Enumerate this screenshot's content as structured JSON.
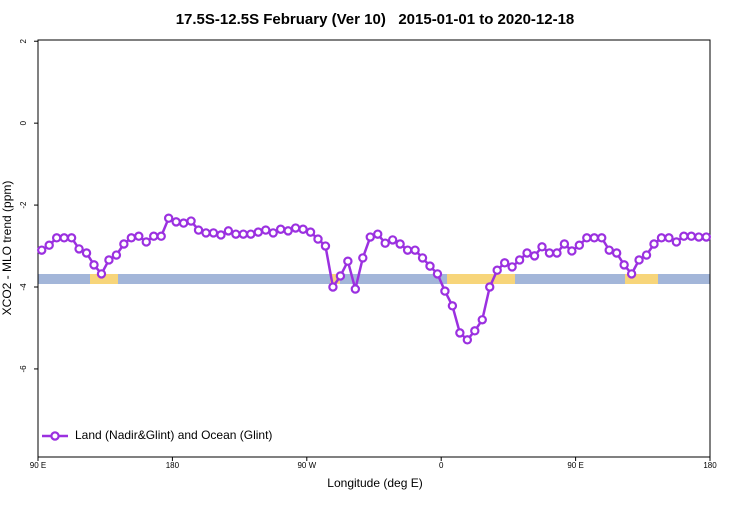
{
  "chart_data": {
    "type": "line",
    "title": "17.5S-12.5S February (Ver 10)   2015-01-01 to 2020-12-18",
    "x_label": "Longitude (deg E)",
    "y_label": "XCO2 - MLO trend (ppm)",
    "xlim": [
      90,
      540
    ],
    "xticks": [
      {
        "value": 90,
        "label": "90 E"
      },
      180,
      {
        "value": 270,
        "label": "90 W"
      },
      {
        "value": 360,
        "label": "0"
      },
      {
        "value": 450,
        "label": "90 E"
      },
      {
        "value": 540,
        "label": "180"
      }
    ],
    "ylim": [
      -8.15,
      2.03
    ],
    "yticks": [
      -6,
      -4,
      -2,
      0,
      2
    ],
    "legend": "bottom-left",
    "x": [
      92.5,
      97.5,
      102.5,
      107.5,
      112.5,
      117.5,
      122.5,
      127.5,
      132.5,
      137.5,
      142.5,
      147.5,
      152.5,
      157.5,
      162.5,
      167.5,
      172.5,
      177.5,
      182.5,
      187.5,
      192.5,
      197.5,
      202.5,
      207.5,
      212.5,
      217.5,
      222.5,
      227.5,
      232.5,
      237.5,
      242.5,
      247.5,
      252.5,
      257.5,
      262.5,
      267.5,
      272.5,
      277.5,
      282.5,
      287.5,
      292.5,
      297.5,
      302.5,
      307.5,
      312.5,
      317.5,
      322.5,
      327.5,
      332.5,
      337.5,
      342.5,
      347.5,
      352.5,
      357.5,
      362.5,
      367.5,
      372.5,
      377.5,
      382.5,
      387.5,
      392.5,
      397.5,
      402.5,
      407.5,
      412.5,
      417.5,
      422.5,
      427.5,
      432.5,
      437.5,
      442.5,
      447.5,
      452.5,
      457.5,
      462.5,
      467.5,
      472.5,
      477.5,
      482.5,
      487.5,
      492.5,
      497.5,
      502.5,
      507.5,
      512.5,
      517.5,
      522.5,
      527.5,
      532.5,
      537.5
    ],
    "series": [
      {
        "name": "Land (Nadir&Glint) and Ocean (Glint)",
        "color": "#9b30e0",
        "values": [
          -3.1,
          -2.98,
          -2.8,
          -2.8,
          -2.8,
          -3.07,
          -3.17,
          -3.46,
          -3.68,
          -3.34,
          -3.22,
          -2.95,
          -2.8,
          -2.76,
          -2.9,
          -2.76,
          -2.76,
          -2.32,
          -2.41,
          -2.44,
          -2.39,
          -2.61,
          -2.68,
          -2.68,
          -2.73,
          -2.63,
          -2.71,
          -2.71,
          -2.71,
          -2.66,
          -2.61,
          -2.68,
          -2.59,
          -2.63,
          -2.56,
          -2.59,
          -2.66,
          -2.83,
          -3.0,
          -4.0,
          -3.73,
          -3.37,
          -4.05,
          -3.29,
          -2.78,
          -2.71,
          -2.93,
          -2.85,
          -2.95,
          -3.1,
          -3.1,
          -3.29,
          -3.49,
          -3.68,
          -4.1,
          -4.46,
          -5.12,
          -5.29,
          -5.07,
          -4.8,
          -4.0,
          -3.59,
          -3.41,
          -3.51,
          -3.34,
          -3.17,
          -3.24,
          -3.02,
          -3.17,
          -3.17,
          -2.95,
          -3.12,
          -2.98,
          -2.8,
          -2.8,
          -2.8,
          -3.1,
          -3.17,
          -3.46,
          -3.68,
          -3.34,
          -3.22,
          -2.95,
          -2.8,
          -2.8,
          -2.9,
          -2.76,
          -2.76,
          -2.78,
          -2.78
        ]
      }
    ]
  }
}
